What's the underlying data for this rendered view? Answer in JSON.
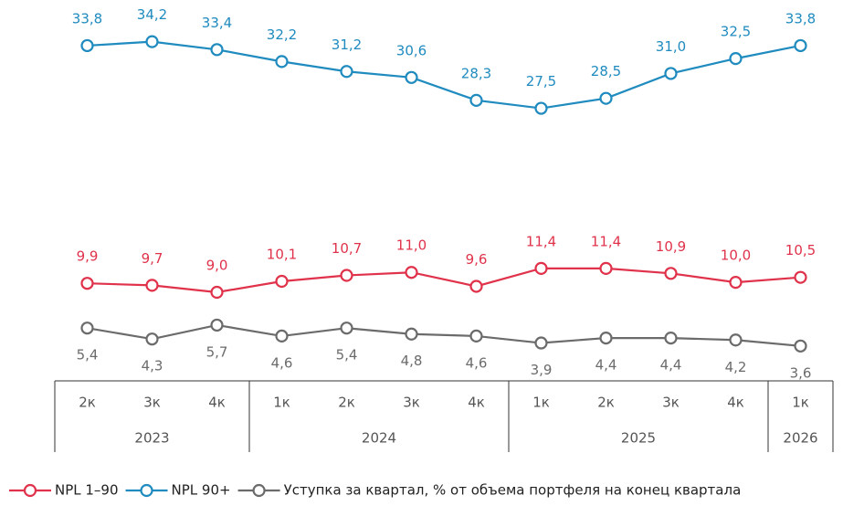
{
  "chart_data": {
    "type": "line",
    "groups": [
      {
        "label": "2023",
        "categories": [
          "2к",
          "3к",
          "4к"
        ]
      },
      {
        "label": "2024",
        "categories": [
          "1к",
          "2к",
          "3к",
          "4к"
        ]
      },
      {
        "label": "2025",
        "categories": [
          "1к",
          "2к",
          "3к",
          "4к"
        ]
      },
      {
        "label": "2026",
        "categories": [
          "1к"
        ]
      }
    ],
    "series": [
      {
        "name": "NPL 1–90",
        "color": "#e0324b",
        "label_side": "above",
        "values": [
          9.9,
          9.7,
          9.0,
          10.1,
          10.7,
          11.0,
          9.6,
          11.4,
          11.4,
          10.9,
          10.0,
          10.5
        ],
        "value_labels": [
          "9,9",
          "9,7",
          "9,0",
          "10,1",
          "10,7",
          "11,0",
          "9,6",
          "11,4",
          "11,4",
          "10,9",
          "10,0",
          "10,5"
        ]
      },
      {
        "name": "NPL 90+",
        "color": "#1f8bbf",
        "label_side": "above",
        "values": [
          33.8,
          34.2,
          33.4,
          32.2,
          31.2,
          30.6,
          28.3,
          27.5,
          28.5,
          31.0,
          32.5,
          33.8
        ],
        "value_labels": [
          "33,8",
          "34,2",
          "33,4",
          "32,2",
          "31,2",
          "30,6",
          "28,3",
          "27,5",
          "28,5",
          "31,0",
          "32,5",
          "33,8"
        ]
      },
      {
        "name": "Уступка за квартал, % от объема портфеля на конец квартала",
        "color": "#6b6b6b",
        "label_side": "below",
        "values": [
          5.4,
          4.3,
          5.7,
          4.6,
          5.4,
          4.8,
          4.6,
          3.9,
          4.4,
          4.4,
          4.2,
          3.6
        ],
        "value_labels": [
          "5,4",
          "4,3",
          "5,7",
          "4,6",
          "5,4",
          "4,8",
          "4,6",
          "3,9",
          "4,4",
          "4,4",
          "4,2",
          "3,6"
        ]
      }
    ],
    "ylim": [
      0,
      36
    ],
    "legend": "bottom"
  }
}
